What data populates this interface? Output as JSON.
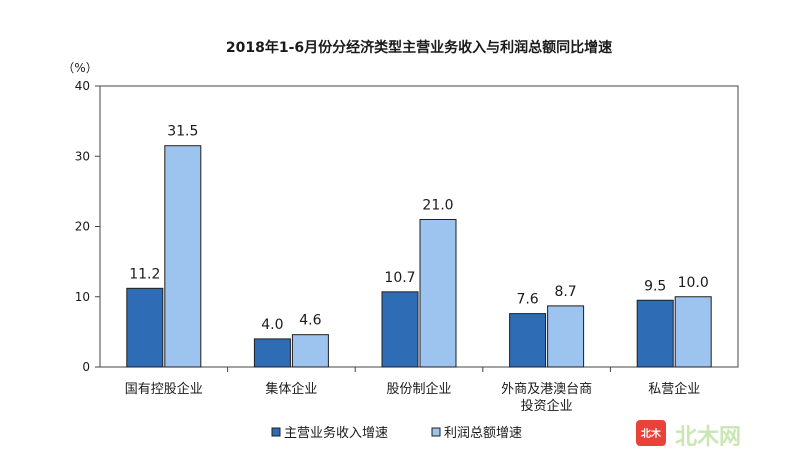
{
  "chart_data": {
    "type": "bar",
    "title": "2018年1-6月份分经济类型主营业务收入与利润总额同比增速",
    "ylabel": "（%）",
    "xlabel": "",
    "ylim": [
      0,
      40
    ],
    "yticks": [
      0,
      10,
      20,
      30,
      40
    ],
    "categories": [
      {
        "lines": [
          "国有控股企业"
        ]
      },
      {
        "lines": [
          "集体企业"
        ]
      },
      {
        "lines": [
          "股份制企业"
        ]
      },
      {
        "lines": [
          "外商及港澳台商",
          "投资企业"
        ]
      },
      {
        "lines": [
          "私营企业"
        ]
      }
    ],
    "series": [
      {
        "name": "主营业务收入增速",
        "color": "#2e6db5",
        "values": [
          11.2,
          4.0,
          10.7,
          7.6,
          9.5
        ],
        "labels": [
          "11.2",
          "4.0",
          "10.7",
          "7.6",
          "9.5"
        ]
      },
      {
        "name": "利润总额增速",
        "color": "#9dc3ef",
        "values": [
          31.5,
          4.6,
          21.0,
          8.7,
          10.0
        ],
        "labels": [
          "31.5",
          "4.6",
          "21.0",
          "8.7",
          "10.0"
        ]
      }
    ],
    "legend_position": "bottom",
    "grid": false
  },
  "watermark": {
    "badge": "北木",
    "text": "北木网",
    "badge_color": "#e8433a"
  }
}
